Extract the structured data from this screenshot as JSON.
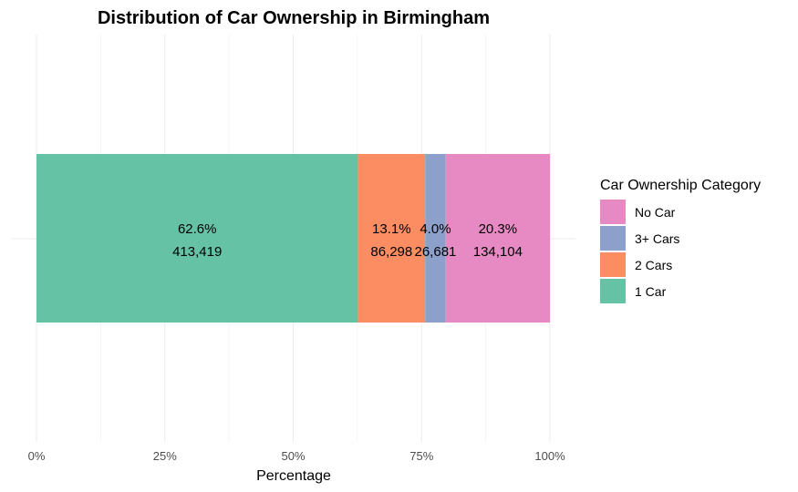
{
  "chart_data": {
    "type": "bar",
    "orientation": "horizontal",
    "stacked": true,
    "title": "Distribution of Car Ownership in Birmingham",
    "xlabel": "Percentage",
    "ylabel": "",
    "xlim": [
      0,
      100
    ],
    "x_ticks": [
      "0%",
      "25%",
      "50%",
      "75%",
      "100%"
    ],
    "x_tick_values": [
      0,
      25,
      50,
      75,
      100
    ],
    "grid": true,
    "legend": {
      "title": "Car Ownership Category",
      "position": "right",
      "order": [
        "No Car",
        "3+ Cars",
        "2 Cars",
        "1 Car"
      ]
    },
    "series": [
      {
        "name": "1 Car",
        "percent": 62.6,
        "percent_label": "62.6%",
        "count_label": "413,419",
        "color": "#66c2a5"
      },
      {
        "name": "2 Cars",
        "percent": 13.1,
        "percent_label": "13.1%",
        "count_label": "86,298",
        "color": "#fc8d62"
      },
      {
        "name": "3+ Cars",
        "percent": 4.0,
        "percent_label": "4.0%",
        "count_label": "26,681",
        "color": "#8da0cb"
      },
      {
        "name": "No Car",
        "percent": 20.3,
        "percent_label": "20.3%",
        "count_label": "134,104",
        "color": "#e78ac3"
      }
    ]
  }
}
